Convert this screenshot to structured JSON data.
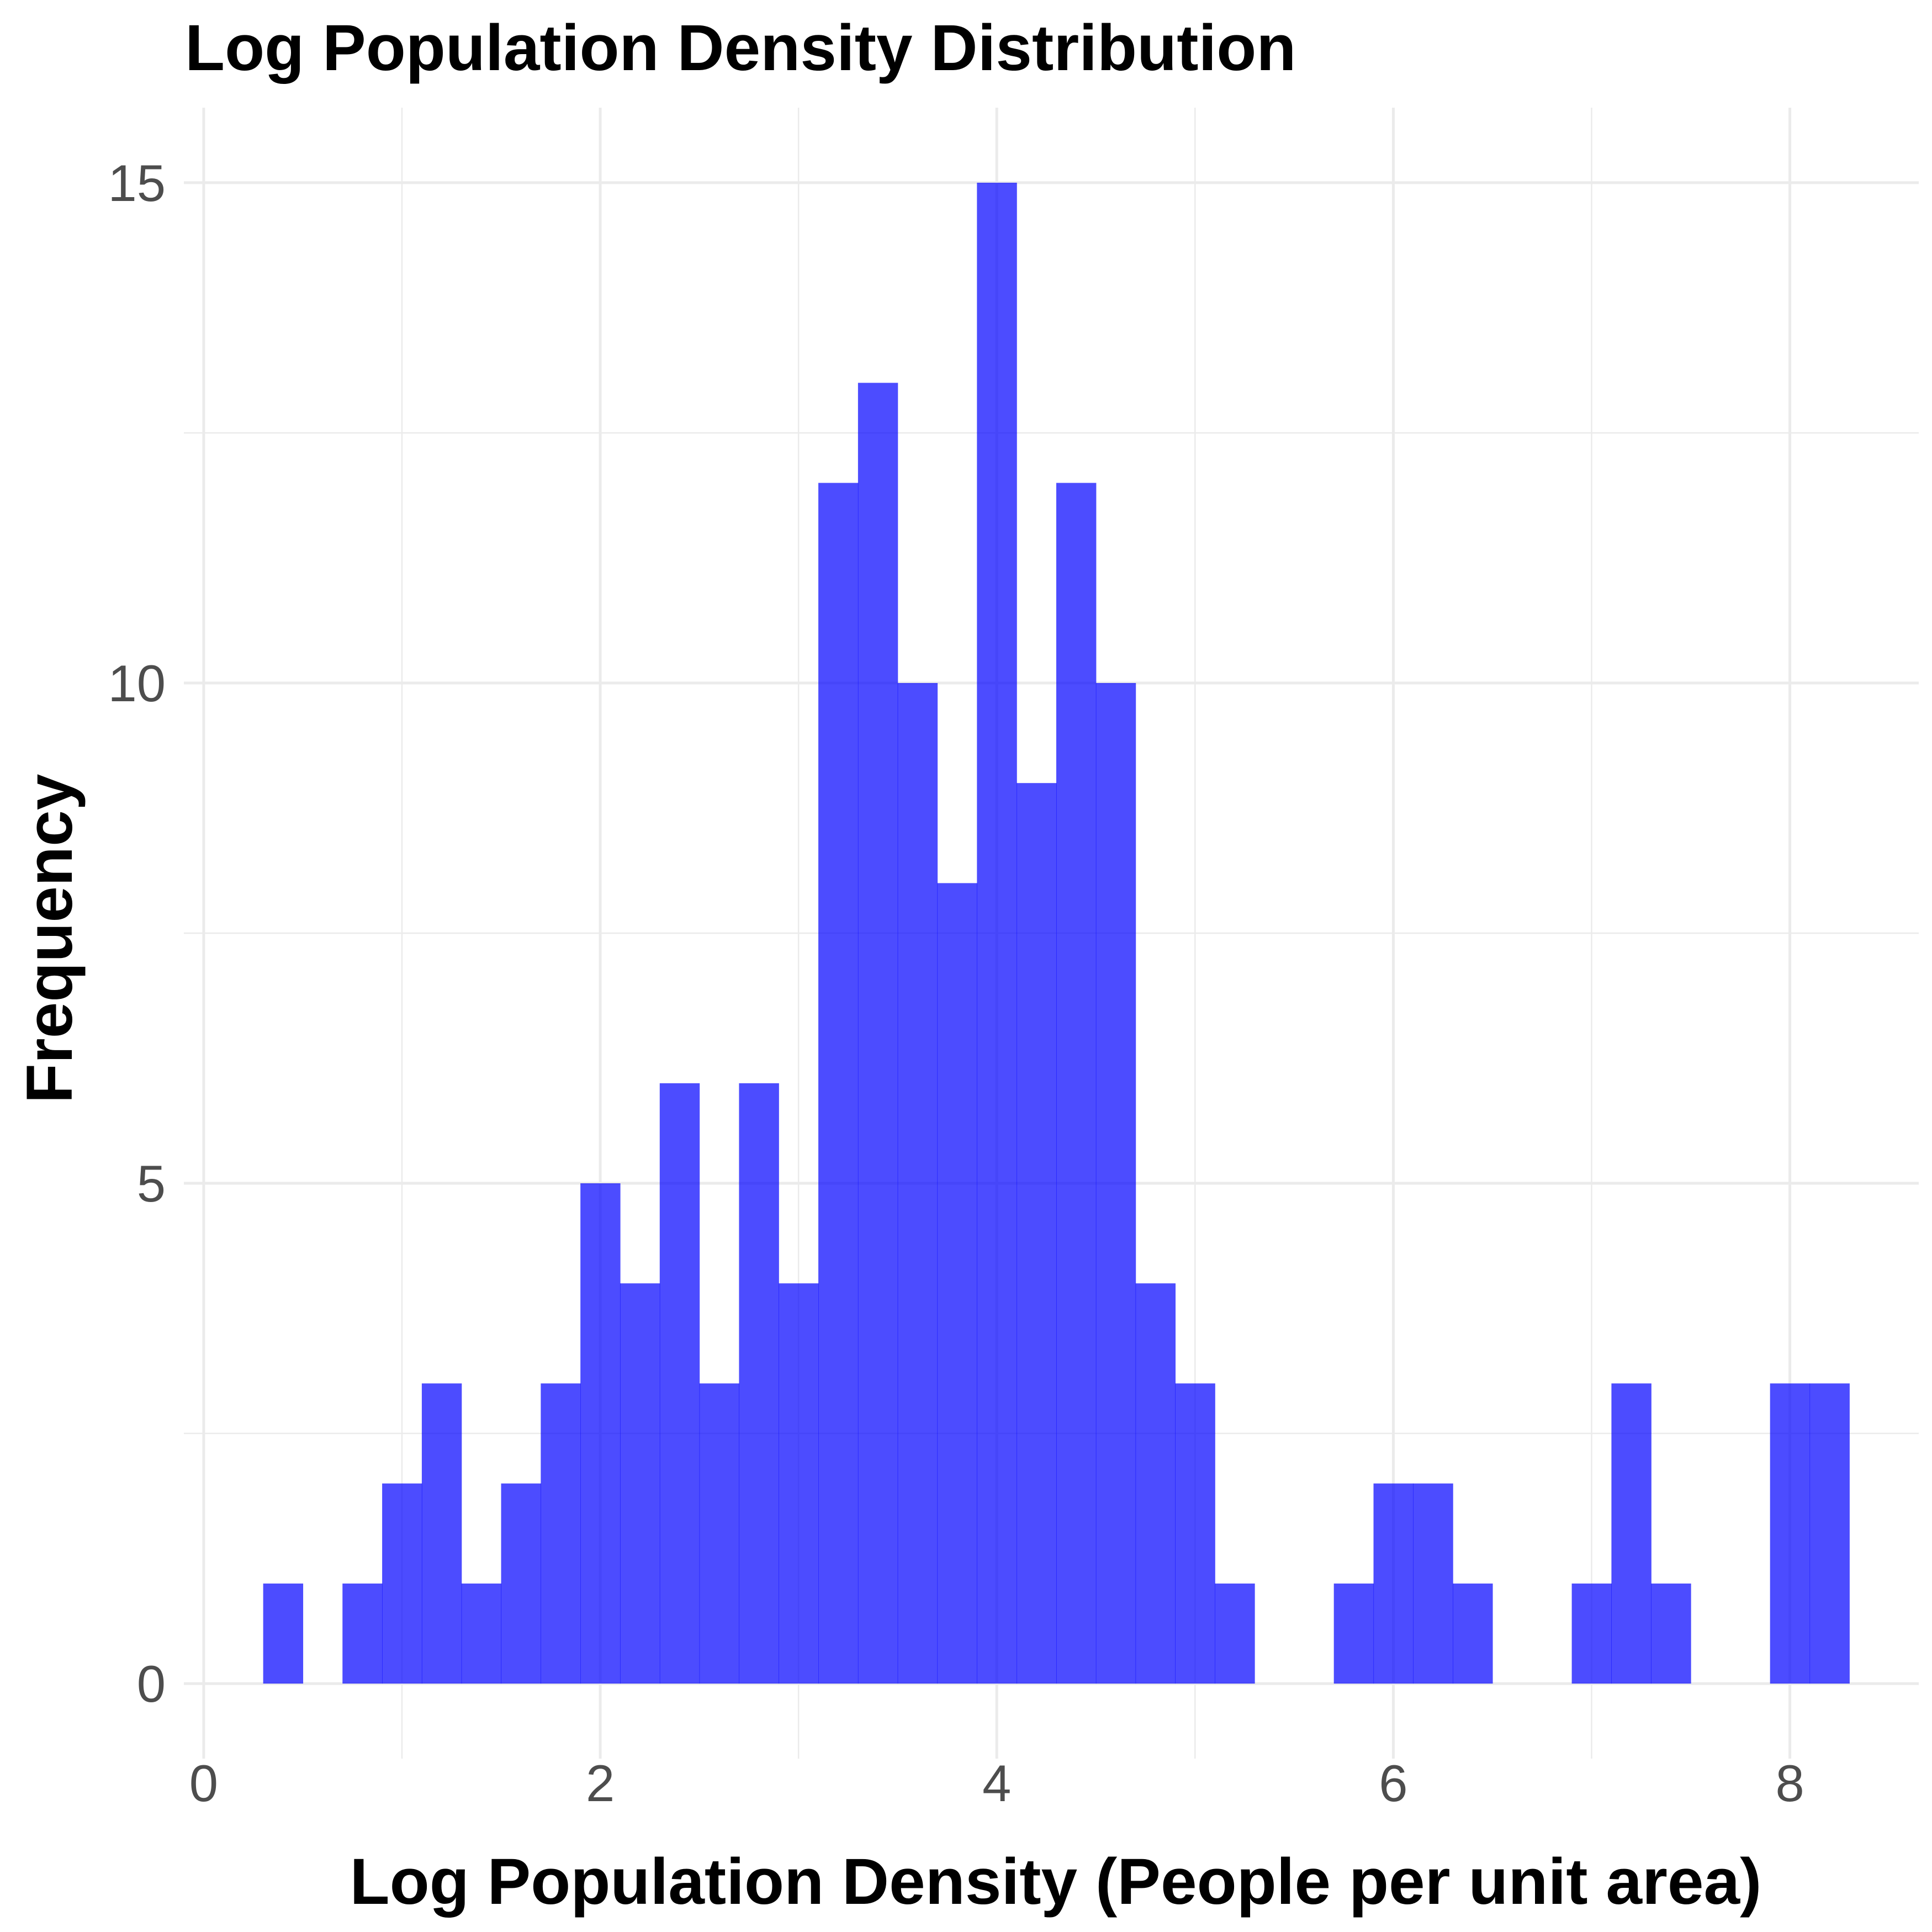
{
  "chart_data": {
    "type": "bar",
    "title": "Log Population Density Distribution",
    "xlabel": "Log Population Density (People per unit area)",
    "ylabel": "Frequency",
    "xlim": [
      -0.1,
      8.65
    ],
    "ylim": [
      -0.75,
      15.75
    ],
    "x_ticks": [
      0,
      2,
      4,
      6,
      8
    ],
    "x_tick_labels": [
      "0",
      "2",
      "4",
      "6",
      "8"
    ],
    "y_ticks": [
      0,
      5,
      10,
      15
    ],
    "y_tick_labels": [
      "0",
      "5",
      "10",
      "15"
    ],
    "grid": true,
    "bar_color": "#0000FF",
    "bar_opacity": 0.7,
    "bin_width": 0.2,
    "bins": [
      {
        "x_start": 0.3,
        "x_end": 0.5,
        "count": 1
      },
      {
        "x_start": 0.5,
        "x_end": 0.7,
        "count": 0
      },
      {
        "x_start": 0.7,
        "x_end": 0.9,
        "count": 1
      },
      {
        "x_start": 0.9,
        "x_end": 1.1,
        "count": 2
      },
      {
        "x_start": 1.1,
        "x_end": 1.3,
        "count": 3
      },
      {
        "x_start": 1.3,
        "x_end": 1.5,
        "count": 1
      },
      {
        "x_start": 1.5,
        "x_end": 1.7,
        "count": 2
      },
      {
        "x_start": 1.7,
        "x_end": 1.9,
        "count": 3
      },
      {
        "x_start": 1.9,
        "x_end": 2.1,
        "count": 5
      },
      {
        "x_start": 2.1,
        "x_end": 2.3,
        "count": 4
      },
      {
        "x_start": 2.3,
        "x_end": 2.5,
        "count": 6
      },
      {
        "x_start": 2.5,
        "x_end": 2.7,
        "count": 3
      },
      {
        "x_start": 2.7,
        "x_end": 2.9,
        "count": 6
      },
      {
        "x_start": 2.9,
        "x_end": 3.1,
        "count": 4
      },
      {
        "x_start": 3.1,
        "x_end": 3.3,
        "count": 12
      },
      {
        "x_start": 3.3,
        "x_end": 3.5,
        "count": 13
      },
      {
        "x_start": 3.5,
        "x_end": 3.7,
        "count": 10
      },
      {
        "x_start": 3.7,
        "x_end": 3.9,
        "count": 8
      },
      {
        "x_start": 3.9,
        "x_end": 4.1,
        "count": 15
      },
      {
        "x_start": 4.1,
        "x_end": 4.3,
        "count": 9
      },
      {
        "x_start": 4.3,
        "x_end": 4.5,
        "count": 12
      },
      {
        "x_start": 4.5,
        "x_end": 4.7,
        "count": 10
      },
      {
        "x_start": 4.7,
        "x_end": 4.9,
        "count": 4
      },
      {
        "x_start": 4.9,
        "x_end": 5.1,
        "count": 3
      },
      {
        "x_start": 5.1,
        "x_end": 5.3,
        "count": 1
      },
      {
        "x_start": 5.3,
        "x_end": 5.5,
        "count": 0
      },
      {
        "x_start": 5.5,
        "x_end": 5.7,
        "count": 0
      },
      {
        "x_start": 5.7,
        "x_end": 5.9,
        "count": 1
      },
      {
        "x_start": 5.9,
        "x_end": 6.1,
        "count": 2
      },
      {
        "x_start": 6.1,
        "x_end": 6.3,
        "count": 2
      },
      {
        "x_start": 6.3,
        "x_end": 6.5,
        "count": 1
      },
      {
        "x_start": 6.5,
        "x_end": 6.7,
        "count": 0
      },
      {
        "x_start": 6.7,
        "x_end": 6.9,
        "count": 0
      },
      {
        "x_start": 6.9,
        "x_end": 7.1,
        "count": 1
      },
      {
        "x_start": 7.1,
        "x_end": 7.3,
        "count": 3
      },
      {
        "x_start": 7.3,
        "x_end": 7.5,
        "count": 1
      },
      {
        "x_start": 7.5,
        "x_end": 7.7,
        "count": 0
      },
      {
        "x_start": 7.7,
        "x_end": 7.9,
        "count": 0
      },
      {
        "x_start": 7.9,
        "x_end": 8.1,
        "count": 3
      },
      {
        "x_start": 8.1,
        "x_end": 8.3,
        "count": 3
      }
    ]
  }
}
